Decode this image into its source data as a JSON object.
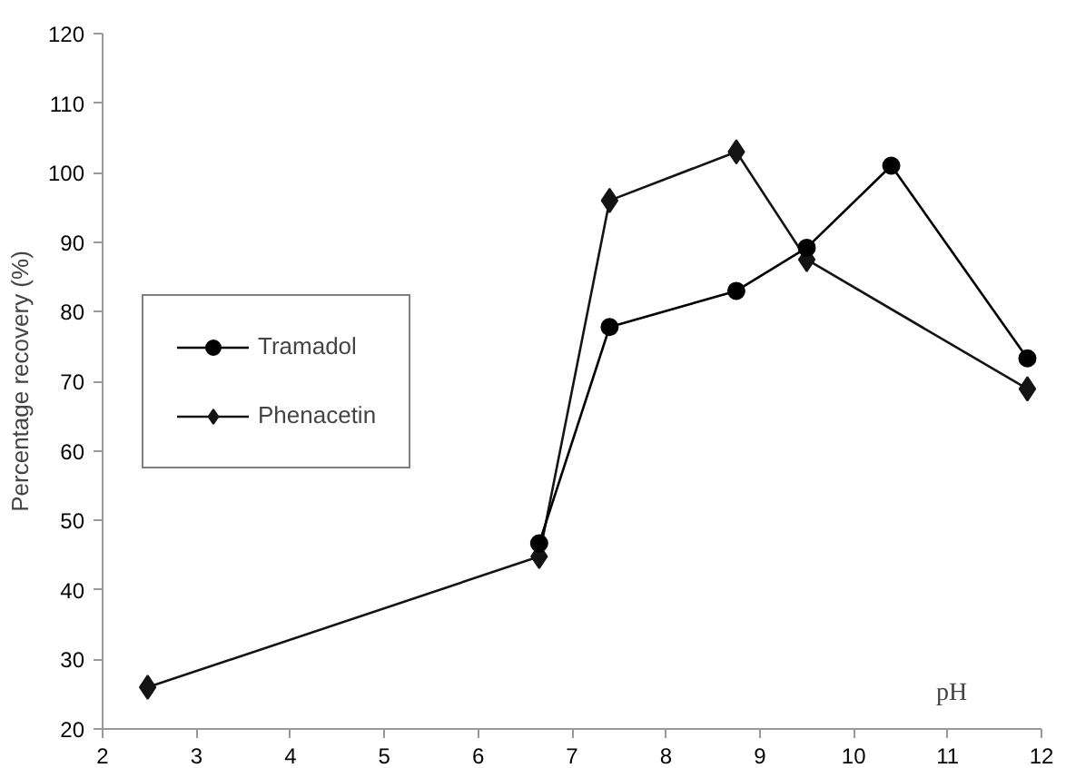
{
  "chart_data": {
    "type": "line",
    "ylabel": "Percentage recovery (%)",
    "xlabel": "pH",
    "xlim": [
      2,
      12
    ],
    "ylim": [
      20,
      120
    ],
    "xticks": [
      2,
      3,
      4,
      5,
      6,
      7,
      8,
      9,
      10,
      11,
      12
    ],
    "yticks": [
      20,
      30,
      40,
      50,
      60,
      70,
      80,
      90,
      100,
      110,
      120
    ],
    "grid": false,
    "legend": "left",
    "series": [
      {
        "name": "Tramadol",
        "color": "#000000",
        "marker": "circle",
        "x": [
          6.65,
          7.4,
          8.75,
          9.5,
          10.4,
          11.85
        ],
        "values": [
          46.7,
          77.8,
          83,
          89.2,
          101,
          73.3
        ]
      },
      {
        "name": "Phenacetin",
        "color": "#141414",
        "marker": "diamond",
        "x": [
          2.48,
          6.65,
          7.4,
          8.75,
          9.5,
          11.85
        ],
        "values": [
          26,
          44.8,
          96,
          103,
          87.5,
          68.9
        ]
      }
    ]
  }
}
